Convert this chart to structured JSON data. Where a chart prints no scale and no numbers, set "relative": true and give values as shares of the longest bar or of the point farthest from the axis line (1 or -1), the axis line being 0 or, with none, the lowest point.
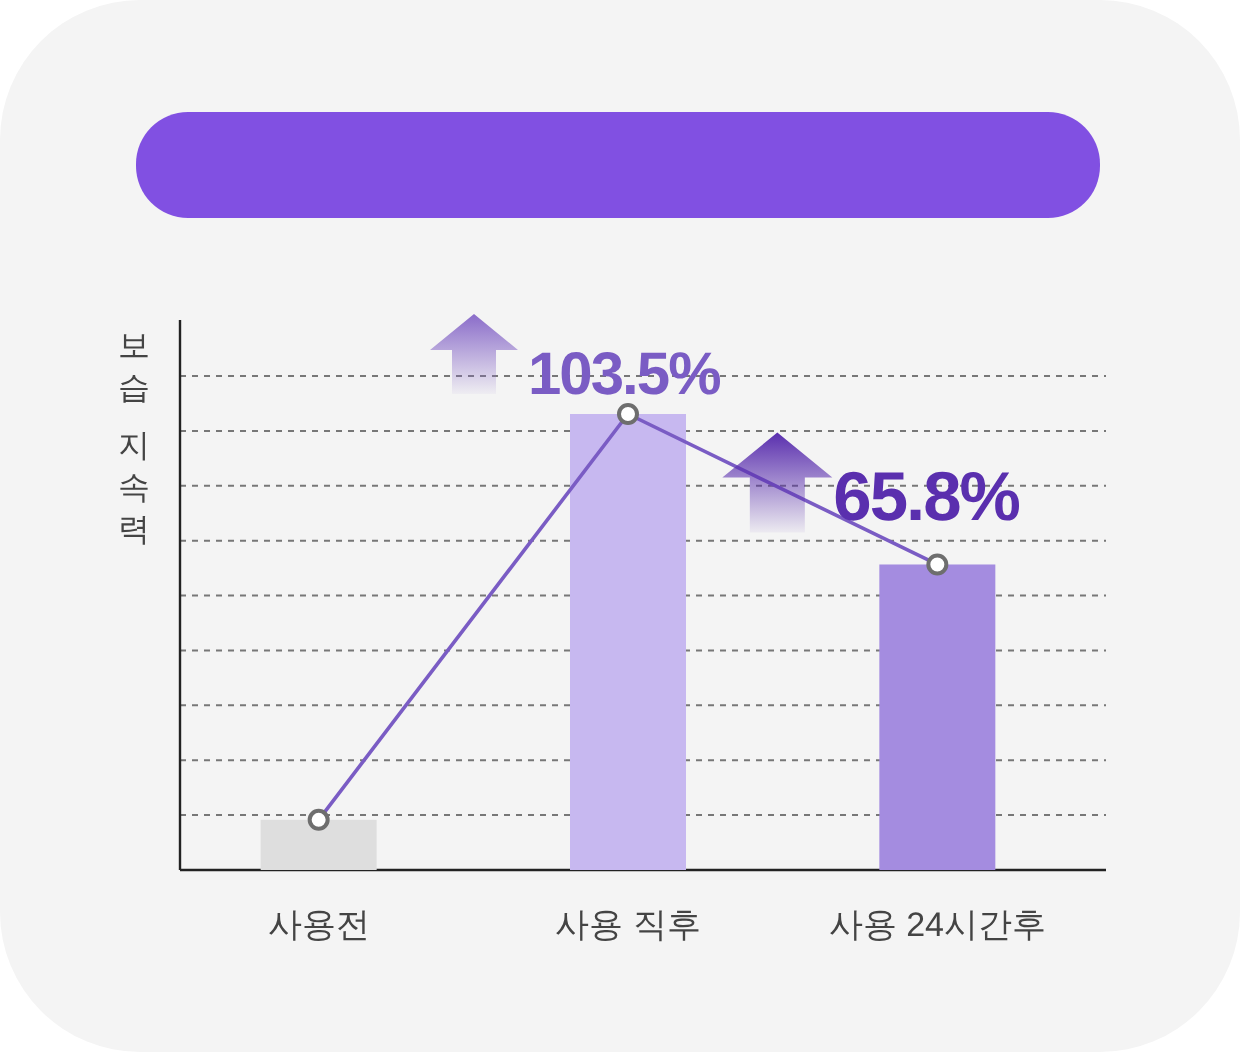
{
  "chart_data": {
    "type": "bar",
    "relative": true,
    "ylabel": "보습 지속력",
    "categories": [
      "사용전",
      "사용 직후",
      "사용 24시간후"
    ],
    "series": [
      {
        "values": [
          0.11,
          1,
          0.67
        ],
        "colors": [
          "#dedede",
          "#c7b8f0",
          "#a48ce0"
        ]
      },
      {
        "type": "line",
        "values": [
          0.11,
          1,
          0.67
        ],
        "color": "#7a5cc4",
        "marker": "circle"
      }
    ],
    "annotations": [
      {
        "text": "103.5%",
        "x": "사용 직후",
        "y": 1
      },
      {
        "text": "65.8%",
        "x": "사용 24시간후",
        "y": 0.67
      }
    ],
    "grid": "y",
    "legend": false
  }
}
